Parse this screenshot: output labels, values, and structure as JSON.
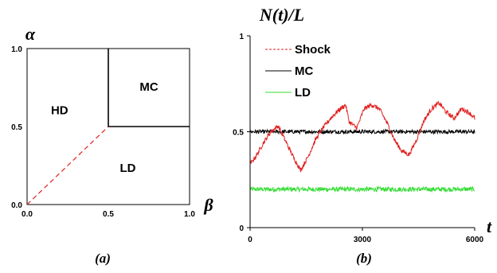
{
  "chart_data": [
    {
      "type": "phase-diagram",
      "xlabel": "β",
      "ylabel": "α",
      "x_ticks": [
        "0.0",
        "0.5",
        "1.0"
      ],
      "y_ticks": [
        "0.0",
        "0.5",
        "1.0"
      ],
      "xlim": [
        0,
        1
      ],
      "ylim": [
        0,
        1
      ],
      "regions": [
        {
          "label": "HD",
          "x": 0.2,
          "y": 0.6
        },
        {
          "label": "MC",
          "x": 0.75,
          "y": 0.75
        },
        {
          "label": "LD",
          "x": 0.62,
          "y": 0.23
        }
      ],
      "boundaries": [
        {
          "style": "solid",
          "color": "#000000",
          "points": [
            [
              0.5,
              0.5
            ],
            [
              0.5,
              1.0
            ]
          ]
        },
        {
          "style": "solid",
          "color": "#000000",
          "points": [
            [
              0.5,
              0.5
            ],
            [
              1.0,
              0.5
            ]
          ]
        },
        {
          "style": "dashed",
          "color": "#e02020",
          "points": [
            [
              0.0,
              0.0
            ],
            [
              0.5,
              0.5
            ]
          ]
        }
      ],
      "caption": "(a)"
    },
    {
      "type": "line",
      "title": "N(t)/L",
      "xlabel": "t",
      "x_ticks": [
        "0",
        "3000",
        "6000"
      ],
      "y_ticks": [
        "0",
        "0.5",
        "1"
      ],
      "xlim": [
        0,
        6000
      ],
      "ylim": [
        0,
        1
      ],
      "legend_position": "top-left",
      "series": [
        {
          "name": "Shock",
          "color": "#e02020",
          "line": "dashed",
          "noise": 0.012,
          "x": [
            0,
            150,
            350,
            550,
            750,
            950,
            1150,
            1350,
            1550,
            1750,
            1950,
            2150,
            2350,
            2550,
            2650,
            2850,
            3050,
            3250,
            3450,
            3650,
            3850,
            4050,
            4250,
            4450,
            4650,
            4850,
            5050,
            5250,
            5450,
            5650,
            5850,
            6000
          ],
          "y": [
            0.33,
            0.37,
            0.44,
            0.5,
            0.53,
            0.45,
            0.37,
            0.3,
            0.37,
            0.46,
            0.52,
            0.57,
            0.61,
            0.64,
            0.55,
            0.52,
            0.62,
            0.64,
            0.62,
            0.55,
            0.46,
            0.4,
            0.38,
            0.46,
            0.56,
            0.62,
            0.65,
            0.6,
            0.57,
            0.62,
            0.6,
            0.57
          ]
        },
        {
          "name": "MC",
          "color": "#000000",
          "line": "solid",
          "noise": 0.01,
          "x": [
            0,
            6000
          ],
          "y": [
            0.5,
            0.5
          ]
        },
        {
          "name": "LD",
          "color": "#33dd33",
          "line": "solid",
          "noise": 0.012,
          "x": [
            0,
            6000
          ],
          "y": [
            0.2,
            0.2
          ]
        }
      ],
      "caption": "(b)"
    }
  ]
}
